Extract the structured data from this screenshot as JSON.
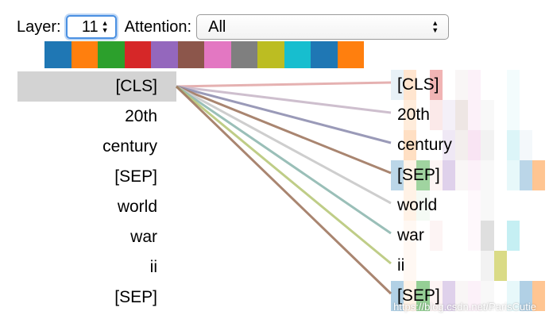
{
  "controls": {
    "layer_label": "Layer:",
    "layer_value": "11",
    "attention_label": "Attention:",
    "attention_value": "All"
  },
  "head_colors": [
    "#1f77b4",
    "#ff7f0e",
    "#2ca02c",
    "#d62728",
    "#9467bd",
    "#8c564b",
    "#e377c2",
    "#7f7f7f",
    "#bcbd22",
    "#17becf",
    "#1f77b4",
    "#ff7f0e"
  ],
  "tokens": {
    "left": [
      "[CLS]",
      "20th",
      "century",
      "[SEP]",
      "world",
      "war",
      "ii",
      "[SEP]"
    ],
    "right": [
      "[CLS]",
      "20th",
      "century",
      "[SEP]",
      "world",
      "war",
      "ii",
      "[SEP]"
    ]
  },
  "selected_token": "[CLS]",
  "watermark": "https://blog.csdn.net/ParisCutie"
}
